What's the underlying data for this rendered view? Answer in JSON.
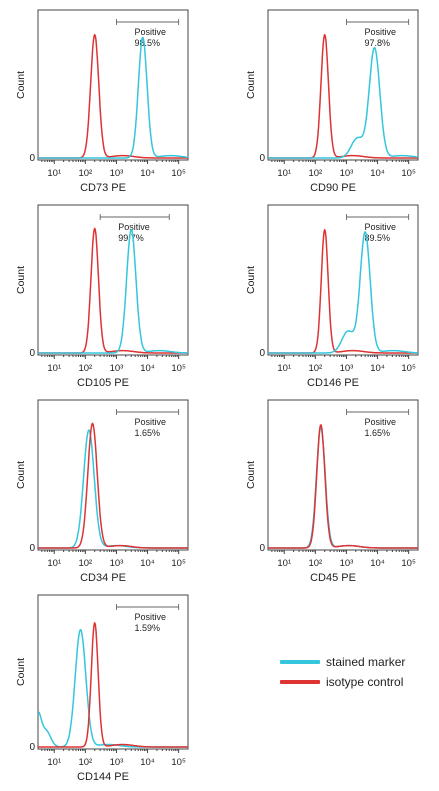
{
  "colors": {
    "stained": "#33c6dd",
    "isotype": "#dd3333",
    "axis": "#444444"
  },
  "legend": {
    "stained_label": "stained marker",
    "isotype_label": "isotype control"
  },
  "chart_data": [
    {
      "type": "line",
      "xlabel": "CD73 PE",
      "ylabel": "Count",
      "x_scale": "log",
      "xlim": [
        3,
        200000
      ],
      "xticks": [
        "10¹",
        "10²",
        "10³",
        "10⁴",
        "10⁵"
      ],
      "y_zero_label": "0",
      "gate": {
        "label": "Positive",
        "value": "98.5%",
        "range": [
          1000,
          100000
        ]
      },
      "series": [
        {
          "name": "isotype control",
          "peak_x": 200,
          "spread": 0.13,
          "height": 0.92,
          "color_key": "isotype"
        },
        {
          "name": "stained marker",
          "peak_x": 7000,
          "spread": 0.14,
          "height": 0.9,
          "color_key": "stained"
        }
      ]
    },
    {
      "type": "line",
      "xlabel": "CD90 PE",
      "ylabel": "Count",
      "x_scale": "log",
      "xlim": [
        3,
        200000
      ],
      "xticks": [
        "10¹",
        "10²",
        "10³",
        "10⁴",
        "10⁵"
      ],
      "y_zero_label": "0",
      "gate": {
        "label": "Positive",
        "value": "97.8%",
        "range": [
          1000,
          100000
        ]
      },
      "series": [
        {
          "name": "isotype control",
          "peak_x": 200,
          "spread": 0.12,
          "height": 0.92,
          "color_key": "isotype"
        },
        {
          "name": "stained marker",
          "peak_x": 8000,
          "spread": 0.17,
          "height": 0.82,
          "shoulder": true,
          "color_key": "stained"
        }
      ]
    },
    {
      "type": "line",
      "xlabel": "CD105 PE",
      "ylabel": "Count",
      "x_scale": "log",
      "xlim": [
        3,
        200000
      ],
      "xticks": [
        "10¹",
        "10²",
        "10³",
        "10⁴",
        "10⁵"
      ],
      "y_zero_label": "0",
      "gate": {
        "label": "Positive",
        "value": "99.7%",
        "range": [
          300,
          50000
        ]
      },
      "series": [
        {
          "name": "isotype control",
          "peak_x": 200,
          "spread": 0.12,
          "height": 0.93,
          "color_key": "isotype"
        },
        {
          "name": "stained marker",
          "peak_x": 3000,
          "spread": 0.15,
          "height": 0.92,
          "color_key": "stained"
        }
      ]
    },
    {
      "type": "line",
      "xlabel": "CD146 PE",
      "ylabel": "Count",
      "x_scale": "log",
      "xlim": [
        3,
        200000
      ],
      "xticks": [
        "10¹",
        "10²",
        "10³",
        "10⁴",
        "10⁵"
      ],
      "y_zero_label": "0",
      "gate": {
        "label": "Positive",
        "value": "89.5%",
        "range": [
          1000,
          100000
        ]
      },
      "series": [
        {
          "name": "isotype control",
          "peak_x": 200,
          "spread": 0.11,
          "height": 0.92,
          "color_key": "isotype"
        },
        {
          "name": "stained marker",
          "peak_x": 4000,
          "spread": 0.16,
          "height": 0.9,
          "shoulder": true,
          "color_key": "stained"
        }
      ]
    },
    {
      "type": "line",
      "xlabel": "CD34 PE",
      "ylabel": "Count",
      "x_scale": "log",
      "xlim": [
        3,
        200000
      ],
      "xticks": [
        "10¹",
        "10²",
        "10³",
        "10⁴",
        "10⁵"
      ],
      "y_zero_label": "0",
      "gate": {
        "label": "Positive",
        "value": "1.65%",
        "range": [
          1000,
          100000
        ]
      },
      "series": [
        {
          "name": "stained marker",
          "peak_x": 130,
          "spread": 0.17,
          "height": 0.88,
          "color_key": "stained"
        },
        {
          "name": "isotype control",
          "peak_x": 170,
          "spread": 0.15,
          "height": 0.93,
          "color_key": "isotype"
        }
      ]
    },
    {
      "type": "line",
      "xlabel": "CD45 PE",
      "ylabel": "Count",
      "x_scale": "log",
      "xlim": [
        3,
        200000
      ],
      "xticks": [
        "10¹",
        "10²",
        "10³",
        "10⁴",
        "10⁵"
      ],
      "y_zero_label": "0",
      "gate": {
        "label": "Positive",
        "value": "1.65%",
        "range": [
          1000,
          100000
        ]
      },
      "series": [
        {
          "name": "stained marker",
          "peak_x": 150,
          "spread": 0.14,
          "height": 0.9,
          "color_key": "stained"
        },
        {
          "name": "isotype control",
          "peak_x": 150,
          "spread": 0.13,
          "height": 0.92,
          "color_key": "isotype"
        }
      ]
    },
    {
      "type": "line",
      "xlabel": "CD144 PE",
      "ylabel": "Count",
      "x_scale": "log",
      "xlim": [
        3,
        200000
      ],
      "xticks": [
        "10¹",
        "10²",
        "10³",
        "10⁴",
        "10⁵"
      ],
      "y_zero_label": "0",
      "gate": {
        "label": "Positive",
        "value": "1.59%",
        "range": [
          1000,
          100000
        ]
      },
      "series": [
        {
          "name": "stained marker",
          "peak_x": 70,
          "spread": 0.17,
          "height": 0.85,
          "left_tail": true,
          "color_key": "stained"
        },
        {
          "name": "isotype control",
          "peak_x": 200,
          "spread": 0.11,
          "height": 0.9,
          "color_key": "isotype"
        }
      ]
    }
  ]
}
